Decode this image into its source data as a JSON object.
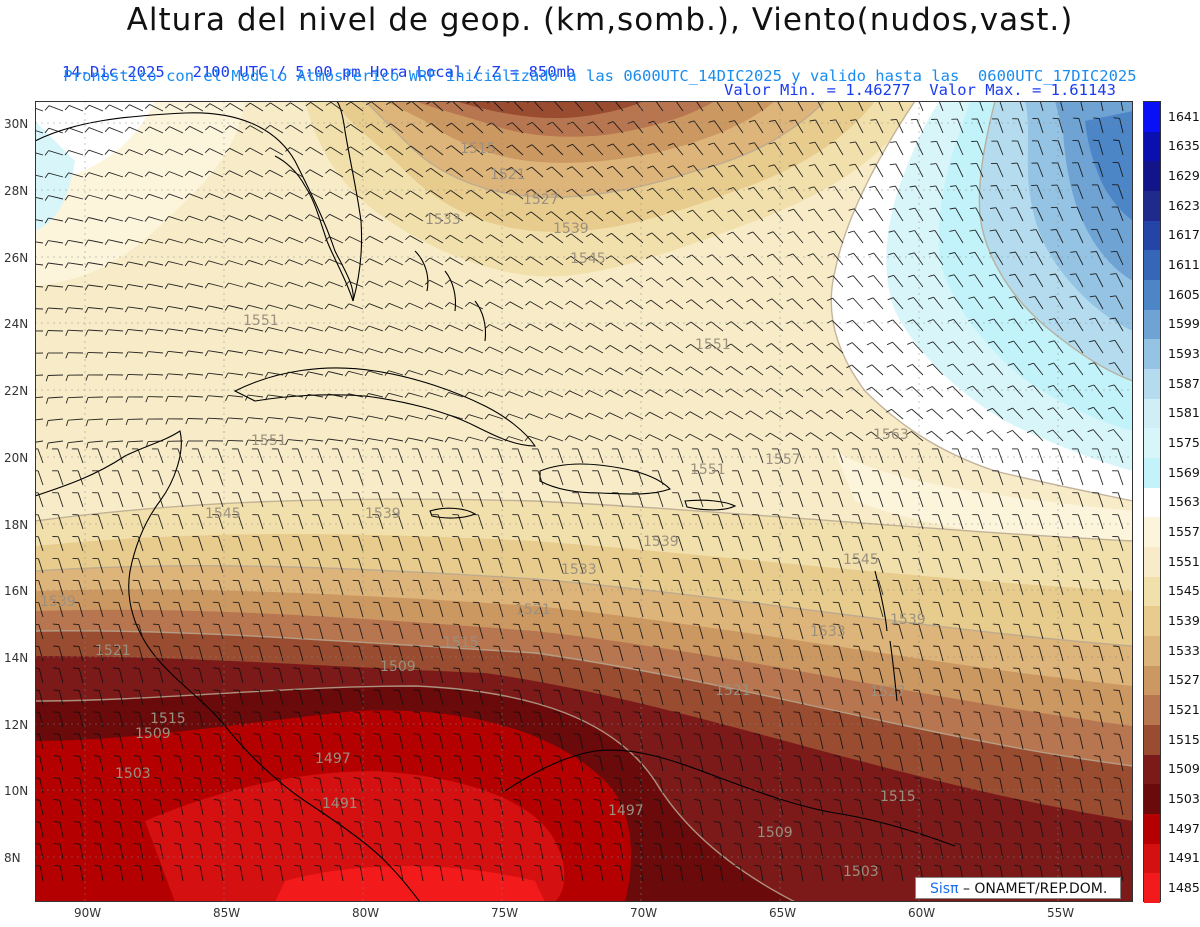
{
  "header": {
    "title": "Altura del nivel de geop. (km,somb.), Viento(nudos,vast.)",
    "subtitle_left": "14-Dic-2025   2100 UTC / 5:00 pm Hora Local / Z = 850mb",
    "subtitle_right": "Valor Min. = 1.46277  Valor Max. = 1.61143",
    "subtitle_model": "Pronostico con el Modelo Atmosferico WRF inicializado a las 0600UTC_14DIC2025 y valido hasta las  0600UTC_17DIC2025"
  },
  "axes": {
    "lat_labels": [
      "30N",
      "28N",
      "26N",
      "24N",
      "22N",
      "20N",
      "18N",
      "16N",
      "14N",
      "12N",
      "10N",
      "8N"
    ],
    "lon_labels": [
      "90W",
      "85W",
      "80W",
      "75W",
      "70W",
      "65W",
      "60W",
      "55W"
    ]
  },
  "colorbar": {
    "levels": [
      "1641",
      "1635",
      "1629",
      "1623",
      "1617",
      "1611",
      "1605",
      "1599",
      "1593",
      "1587",
      "1581",
      "1575",
      "1569",
      "1563",
      "1557",
      "1551",
      "1545",
      "1539",
      "1533",
      "1527",
      "1521",
      "1515",
      "1509",
      "1503",
      "1497",
      "1491",
      "1485"
    ],
    "colors": [
      "#0a10f5",
      "#0a0fb0",
      "#14148a",
      "#1e2a8c",
      "#2445a8",
      "#3566b8",
      "#4d86c6",
      "#6fa3d4",
      "#94c3e4",
      "#b4dcee",
      "#cfeef6",
      "#d8f6fa",
      "#c2f2fa",
      "#ffffff",
      "#fdf4dc",
      "#f8ecc8",
      "#f2e0ac",
      "#e8cc8e",
      "#ddb47a",
      "#cc9862",
      "#b87650",
      "#9a4c30",
      "#7c1a1a",
      "#6a0a0a",
      "#b40000",
      "#d41010",
      "#f21a1a"
    ]
  },
  "contour_labels": [
    "1515",
    "1521",
    "1527",
    "1533",
    "1539",
    "1545",
    "1551",
    "1557",
    "1563",
    "1509",
    "1503",
    "1497",
    "1491"
  ],
  "credit": {
    "brand": "Sisπ",
    "org": "– ONAMET/REP.DOM."
  }
}
